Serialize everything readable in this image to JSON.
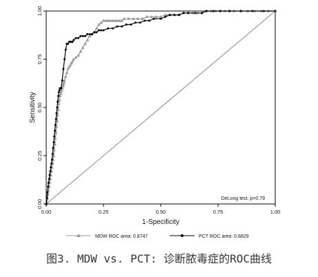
{
  "chart_data": {
    "type": "line",
    "title": "",
    "xlabel": "1-Specificity",
    "ylabel": "Sensitivity",
    "xlim": [
      0,
      1
    ],
    "ylim": [
      0,
      1
    ],
    "xticks": [
      "0.00",
      "0.25",
      "0.50",
      "0.75",
      "1.00"
    ],
    "yticks": [
      "0.00",
      "0.25",
      "0.50",
      "0.75",
      "1.00"
    ],
    "grid": false,
    "legend": "bottom",
    "annotation": "DeLong test, p=0.79",
    "series": [
      {
        "name": "MDW ROC area: 0.8747",
        "color": "#9a9a9a",
        "marker": "triangle",
        "x": [
          0.0,
          0.003,
          0.005,
          0.008,
          0.01,
          0.013,
          0.015,
          0.018,
          0.02,
          0.023,
          0.025,
          0.028,
          0.03,
          0.033,
          0.035,
          0.038,
          0.04,
          0.043,
          0.045,
          0.048,
          0.05,
          0.053,
          0.055,
          0.058,
          0.06,
          0.063,
          0.065,
          0.068,
          0.07,
          0.073,
          0.075,
          0.078,
          0.08,
          0.085,
          0.09,
          0.095,
          0.1,
          0.105,
          0.11,
          0.115,
          0.12,
          0.13,
          0.14,
          0.15,
          0.16,
          0.17,
          0.18,
          0.19,
          0.2,
          0.21,
          0.22,
          0.23,
          0.24,
          0.25,
          0.26,
          0.27,
          0.28,
          0.29,
          0.3,
          0.31,
          0.32,
          0.33,
          0.34,
          0.36,
          0.38,
          0.4,
          0.42,
          0.44,
          0.46,
          0.48,
          0.5,
          0.52,
          0.54,
          0.56,
          0.58,
          0.6,
          0.62,
          0.64,
          0.66,
          0.68,
          0.7,
          0.72,
          0.74,
          0.76,
          0.78,
          0.8,
          0.82,
          0.85,
          0.88,
          0.91,
          0.94,
          0.97,
          1.0
        ],
        "y": [
          0.0,
          0.01,
          0.03,
          0.05,
          0.07,
          0.09,
          0.11,
          0.13,
          0.15,
          0.17,
          0.19,
          0.21,
          0.23,
          0.25,
          0.28,
          0.31,
          0.34,
          0.37,
          0.4,
          0.43,
          0.46,
          0.49,
          0.52,
          0.54,
          0.56,
          0.57,
          0.58,
          0.59,
          0.6,
          0.61,
          0.62,
          0.63,
          0.64,
          0.66,
          0.68,
          0.7,
          0.71,
          0.72,
          0.73,
          0.74,
          0.75,
          0.76,
          0.77,
          0.79,
          0.81,
          0.83,
          0.85,
          0.87,
          0.88,
          0.89,
          0.91,
          0.93,
          0.94,
          0.95,
          0.95,
          0.95,
          0.95,
          0.95,
          0.95,
          0.95,
          0.95,
          0.95,
          0.96,
          0.96,
          0.96,
          0.96,
          0.96,
          0.97,
          0.97,
          0.97,
          0.97,
          0.98,
          0.98,
          0.98,
          0.98,
          0.99,
          0.99,
          0.99,
          0.99,
          0.99,
          1.0,
          1.0,
          1.0,
          1.0,
          1.0,
          1.0,
          1.0,
          1.0,
          1.0,
          1.0,
          1.0,
          1.0,
          1.0
        ]
      },
      {
        "name": "PCT ROC area: 0.8829",
        "color": "#000000",
        "marker": "circle",
        "x": [
          0.0,
          0.003,
          0.005,
          0.008,
          0.01,
          0.013,
          0.015,
          0.018,
          0.02,
          0.023,
          0.025,
          0.028,
          0.03,
          0.033,
          0.035,
          0.038,
          0.04,
          0.043,
          0.045,
          0.048,
          0.05,
          0.053,
          0.055,
          0.058,
          0.06,
          0.065,
          0.07,
          0.075,
          0.08,
          0.085,
          0.09,
          0.095,
          0.1,
          0.105,
          0.11,
          0.115,
          0.12,
          0.13,
          0.14,
          0.15,
          0.16,
          0.17,
          0.18,
          0.19,
          0.2,
          0.21,
          0.22,
          0.23,
          0.24,
          0.25,
          0.27,
          0.29,
          0.31,
          0.33,
          0.35,
          0.37,
          0.39,
          0.41,
          0.43,
          0.45,
          0.47,
          0.5,
          0.52,
          0.54,
          0.56,
          0.58,
          0.6,
          0.62,
          0.65,
          0.68,
          0.7,
          0.73,
          0.76,
          0.8,
          0.85,
          0.9,
          0.95,
          1.0
        ],
        "y": [
          0.0,
          0.03,
          0.06,
          0.09,
          0.11,
          0.13,
          0.15,
          0.17,
          0.19,
          0.21,
          0.23,
          0.26,
          0.29,
          0.32,
          0.35,
          0.38,
          0.41,
          0.44,
          0.47,
          0.5,
          0.53,
          0.56,
          0.58,
          0.59,
          0.6,
          0.6,
          0.64,
          0.7,
          0.75,
          0.8,
          0.83,
          0.83,
          0.84,
          0.84,
          0.84,
          0.84,
          0.85,
          0.86,
          0.86,
          0.87,
          0.87,
          0.87,
          0.88,
          0.88,
          0.88,
          0.89,
          0.89,
          0.9,
          0.9,
          0.9,
          0.91,
          0.91,
          0.92,
          0.92,
          0.93,
          0.93,
          0.94,
          0.94,
          0.95,
          0.95,
          0.96,
          0.96,
          0.97,
          0.98,
          0.98,
          0.98,
          0.99,
          0.99,
          0.99,
          0.99,
          1.0,
          1.0,
          1.0,
          1.0,
          1.0,
          1.0,
          1.0,
          1.0
        ]
      }
    ],
    "reference_line": {
      "x": [
        0,
        1
      ],
      "y": [
        0,
        1
      ],
      "color": "#8a8a8a"
    }
  },
  "caption": "图3. MDW vs. PCT: 诊断脓毒症的ROC曲线"
}
